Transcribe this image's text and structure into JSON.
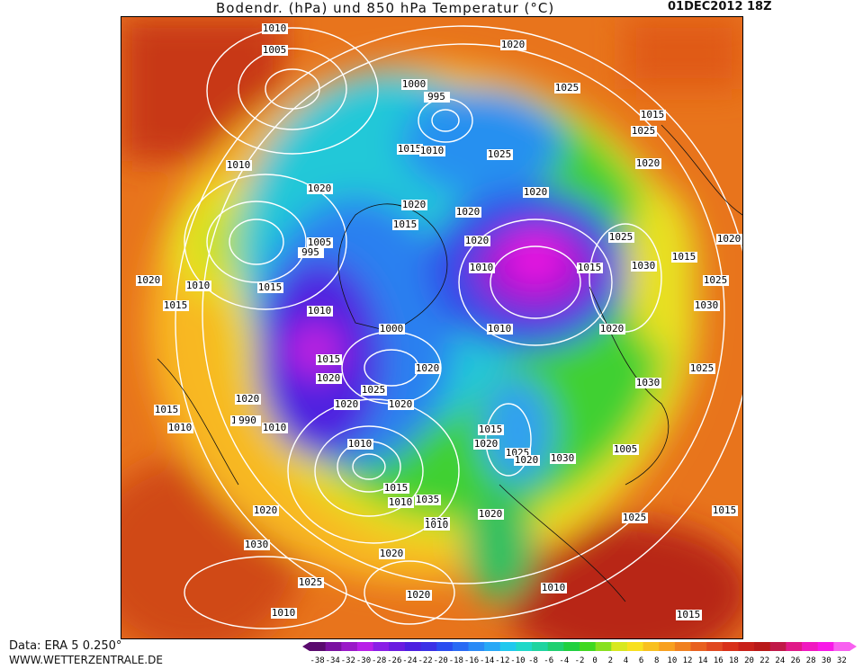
{
  "header": {
    "title": "Bodendr. (hPa) und 850 hPa Temperatur (°C)",
    "date": "01DEC2012 18Z"
  },
  "footer": {
    "data_source": "Data: ERA 5 0.250°",
    "website": "WWW.WETTERZENTRALE.DE"
  },
  "legend": {
    "ticks": [
      "-38",
      "-34",
      "-32",
      "-30",
      "-28",
      "-26",
      "-24",
      "-22",
      "-20",
      "-18",
      "-16",
      "-14",
      "-12",
      "-10",
      "-8",
      "-6",
      "-4",
      "-2",
      "0",
      "2",
      "4",
      "6",
      "8",
      "10",
      "12",
      "14",
      "16",
      "18",
      "20",
      "22",
      "24",
      "26",
      "28",
      "30",
      "32"
    ],
    "colors": [
      "#5a0a6e",
      "#7a10a0",
      "#9a18c8",
      "#b81ee8",
      "#8a1ee6",
      "#6a1ae0",
      "#4c1ee0",
      "#3a30e6",
      "#2a4cf0",
      "#2a6af4",
      "#2a8af6",
      "#28a8f6",
      "#20c8ee",
      "#20d8c8",
      "#20d4a0",
      "#20d070",
      "#20d040",
      "#40d820",
      "#88e020",
      "#d8e820",
      "#f8e020",
      "#f8c020",
      "#f8a020",
      "#f08020",
      "#e86020",
      "#e04820",
      "#d83018",
      "#c82018",
      "#b81818",
      "#c01848",
      "#e01888",
      "#f018c0",
      "#f818e8",
      "#f860f0"
    ]
  },
  "map": {
    "isobar_labels": [
      "1010",
      "1005",
      "1020",
      "1000",
      "995",
      "1025",
      "1015",
      "1015",
      "1010",
      "1025",
      "1025",
      "1010",
      "1020",
      "1020",
      "1020",
      "1020",
      "1020",
      "1015",
      "1020",
      "995",
      "1005",
      "1015",
      "1025",
      "1020",
      "1010",
      "1015",
      "1030",
      "1020",
      "1025",
      "1030",
      "1015",
      "1010",
      "1015",
      "1010",
      "1000",
      "1020",
      "1010",
      "1015",
      "1020",
      "1025",
      "1030",
      "1020",
      "1025",
      "1020",
      "1020",
      "1020",
      "1015",
      "1015",
      "1010",
      "990",
      "1010",
      "1005",
      "1010",
      "1015",
      "1010",
      "1035",
      "1025",
      "1020",
      "1020",
      "1025",
      "1030",
      "1010",
      "1015",
      "1015",
      "1010",
      "1015",
      "1020",
      "1025",
      "1020",
      "1030",
      "1020",
      "1025",
      "1020",
      "1010"
    ]
  }
}
